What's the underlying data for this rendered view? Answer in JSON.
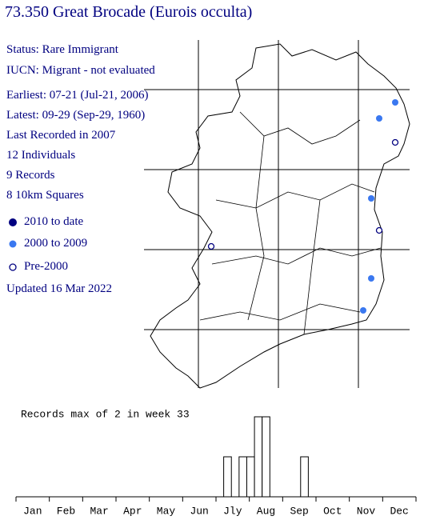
{
  "header": {
    "title": "73.350 Great Brocade (Eurois occulta)"
  },
  "info": {
    "status": "Status: Rare Immigrant",
    "iucn": "IUCN: Migrant - not evaluated",
    "earliest": "Earliest: 07-21 (Jul-21, 2006)",
    "latest": "Latest: 09-29 (Sep-29, 1960)",
    "last_recorded": "Last Recorded in 2007",
    "individuals": "12 Individuals",
    "records": "9 Records",
    "squares": "8 10km Squares",
    "updated": "Updated 16 Mar 2022"
  },
  "legend": [
    {
      "label": "2010 to date",
      "color": "#000080"
    },
    {
      "label": "2000 to 2009",
      "color": "#3a78f0"
    },
    {
      "label": "Pre-2000",
      "color": "#ffffff"
    }
  ],
  "chart_data": {
    "type": "bar",
    "title": "Records max of 2 in week 33",
    "color": "#ffffff",
    "x": [
      1,
      2,
      3,
      4,
      5,
      6,
      7,
      8,
      9,
      10,
      11,
      12,
      13,
      14,
      15,
      16,
      17,
      18,
      19,
      20,
      21,
      22,
      23,
      24,
      25,
      26,
      27,
      28,
      29,
      30,
      31,
      32,
      33,
      34,
      35,
      36,
      37,
      38,
      39,
      40,
      41,
      42,
      43,
      44,
      45,
      46,
      47,
      48,
      49,
      50,
      51,
      52
    ],
    "values": [
      0,
      0,
      0,
      0,
      0,
      0,
      0,
      0,
      0,
      0,
      0,
      0,
      0,
      0,
      0,
      0,
      0,
      0,
      0,
      0,
      0,
      0,
      0,
      0,
      0,
      0,
      0,
      1,
      0,
      1,
      1,
      2,
      2,
      0,
      0,
      0,
      0,
      1,
      0,
      0,
      0,
      0,
      0,
      0,
      0,
      0,
      0,
      0,
      0,
      0,
      0,
      0
    ],
    "months": [
      "Jan",
      "Feb",
      "Mar",
      "Apr",
      "May",
      "Jun",
      "Jly",
      "Aug",
      "Sep",
      "Oct",
      "Nov",
      "Dec"
    ],
    "ylim": [
      0,
      2
    ]
  }
}
